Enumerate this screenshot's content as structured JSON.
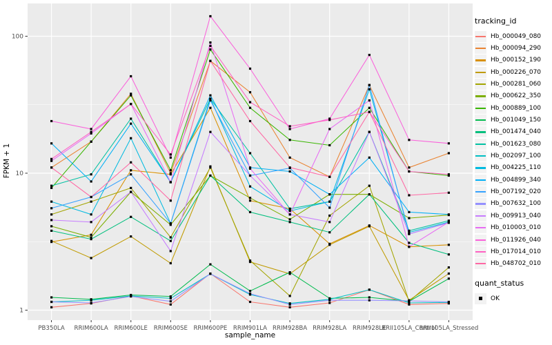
{
  "figure": {
    "y_axis_title": "FPKM + 1",
    "x_axis_title": "sample_name",
    "legend": {
      "tracking_title": "tracking_id",
      "quant_title": "quant_status",
      "quant_items": [
        {
          "label": "OK",
          "marker": "black-square"
        }
      ]
    },
    "colors": {
      "panel_bg": "#EBEBEB",
      "grid": "#FFFFFF",
      "tick_text": "#4D4D4D",
      "point": "#000000"
    }
  },
  "chart_data": {
    "type": "line",
    "x_type": "categorical",
    "y_scale": "log10",
    "title": "",
    "xlabel": "sample_name",
    "ylabel": "FPKM + 1",
    "ylim": [
      0.9,
      175
    ],
    "y_ticks": [
      1,
      10,
      100
    ],
    "y_minor_ticks": [
      3.1623,
      31.623
    ],
    "grid": true,
    "legend_position": "right",
    "point_marker": "black-square",
    "categories": [
      "PB350LA",
      "RRIM600LA",
      "RRIM600LE",
      "RRIM600SE",
      "RRIM600PE",
      "RRIM901LA",
      "RRIM928BA",
      "RRIM928LA",
      "RRIM928LE",
      "RRII105LA_Control",
      "RRII105LA_Stressed"
    ],
    "series": [
      {
        "name": "Hb_000049_080",
        "color": "#F8766D",
        "values": [
          1.05,
          1.12,
          1.27,
          1.1,
          1.85,
          1.15,
          1.05,
          1.13,
          1.41,
          1.1,
          1.12
        ]
      },
      {
        "name": "Hb_000094_290",
        "color": "#EA8331",
        "values": [
          11.0,
          17.0,
          38.0,
          10.0,
          66.0,
          39.0,
          13.0,
          9.4,
          44.0,
          11.0,
          14.0
        ]
      },
      {
        "name": "Hb_000152_190",
        "color": "#D89000",
        "values": [
          3.15,
          3.55,
          10.5,
          9.8,
          30.0,
          6.3,
          5.5,
          3.05,
          4.15,
          2.9,
          3.0
        ]
      },
      {
        "name": "Hb_000226_070",
        "color": "#C09B00",
        "values": [
          3.2,
          2.4,
          3.45,
          2.2,
          11.2,
          2.25,
          1.84,
          3.0,
          4.1,
          1.18,
          1.85
        ]
      },
      {
        "name": "Hb_000281_060",
        "color": "#A3A500",
        "values": [
          5.0,
          6.2,
          7.8,
          3.4,
          11.0,
          2.3,
          1.27,
          4.9,
          8.1,
          1.16,
          2.05
        ]
      },
      {
        "name": "Hb_000622_350",
        "color": "#7CAE00",
        "values": [
          4.1,
          3.4,
          7.3,
          4.2,
          9.6,
          6.6,
          4.6,
          7.0,
          7.0,
          4.7,
          4.95
        ]
      },
      {
        "name": "Hb_000889_100",
        "color": "#39B600",
        "values": [
          7.8,
          17.0,
          37.0,
          10.5,
          80.0,
          30.0,
          17.5,
          16.0,
          30.0,
          10.3,
          9.6
        ]
      },
      {
        "name": "Hb_001049_150",
        "color": "#00BB4E",
        "values": [
          1.24,
          1.2,
          1.29,
          1.26,
          2.16,
          1.38,
          1.89,
          1.22,
          1.24,
          1.16,
          1.7
        ]
      },
      {
        "name": "Hb_001474_040",
        "color": "#00BF7D",
        "values": [
          3.8,
          3.3,
          4.8,
          3.2,
          9.6,
          5.2,
          4.4,
          3.7,
          7.0,
          3.1,
          2.55
        ]
      },
      {
        "name": "Hb_001623_080",
        "color": "#00C1A3",
        "values": [
          8.1,
          9.8,
          25.0,
          8.6,
          35.0,
          14.0,
          5.5,
          6.2,
          20.0,
          3.8,
          4.5
        ]
      },
      {
        "name": "Hb_002097_100",
        "color": "#00BFC4",
        "values": [
          1.15,
          1.18,
          1.27,
          1.22,
          1.84,
          1.3,
          1.12,
          1.2,
          1.41,
          1.13,
          1.14
        ]
      },
      {
        "name": "Hb_004225_110",
        "color": "#00BAE0",
        "values": [
          6.2,
          5.0,
          18.0,
          4.3,
          35.0,
          8.0,
          5.3,
          6.2,
          41.0,
          3.7,
          4.4
        ]
      },
      {
        "name": "Hb_004899_340",
        "color": "#00B0F6",
        "values": [
          16.5,
          8.7,
          23.0,
          8.6,
          37.0,
          11.0,
          10.3,
          7.0,
          13.0,
          5.2,
          5.0
        ]
      },
      {
        "name": "Hb_007192_020",
        "color": "#35A2FF",
        "values": [
          5.55,
          6.7,
          9.8,
          4.3,
          34.0,
          9.6,
          10.9,
          5.6,
          44.0,
          3.6,
          4.35
        ]
      },
      {
        "name": "Hb_007632_100",
        "color": "#9590FF",
        "values": [
          1.15,
          1.13,
          1.26,
          1.16,
          1.84,
          1.32,
          1.1,
          1.18,
          1.18,
          1.17,
          1.15
        ]
      },
      {
        "name": "Hb_009913_040",
        "color": "#C77CFF",
        "values": [
          4.55,
          4.4,
          7.3,
          2.7,
          20.0,
          9.6,
          5.0,
          4.4,
          20.0,
          3.6,
          4.35
        ]
      },
      {
        "name": "Hb_010003_010",
        "color": "#E76BF3",
        "values": [
          12.3,
          19.5,
          32.0,
          8.6,
          90.0,
          10.8,
          5.0,
          21.0,
          34.0,
          2.9,
          4.4
        ]
      },
      {
        "name": "Hb_011926_040",
        "color": "#FA62DB",
        "values": [
          24.0,
          21.0,
          51.0,
          13.0,
          140.0,
          58.0,
          21.0,
          25.0,
          73.0,
          17.5,
          16.5
        ]
      },
      {
        "name": "Hb_017014_010",
        "color": "#FF61C3",
        "values": [
          12.7,
          20.0,
          32.0,
          13.7,
          85.0,
          33.0,
          22.0,
          24.5,
          28.0,
          10.3,
          9.8
        ]
      },
      {
        "name": "Hb_048702_010",
        "color": "#FF67A4",
        "values": [
          11.0,
          6.7,
          12.0,
          6.3,
          66.0,
          24.0,
          11.0,
          9.4,
          28.0,
          6.9,
          7.2
        ]
      }
    ]
  }
}
